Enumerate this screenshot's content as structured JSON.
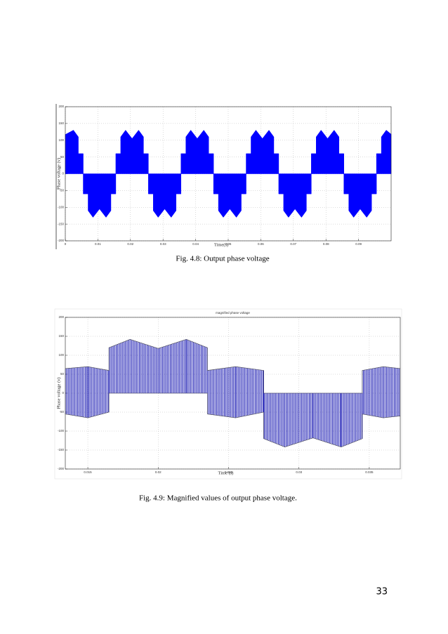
{
  "chart_data": [
    {
      "type": "area",
      "ylabel": "Phase voltage (v)",
      "xlabel": "Time(s)",
      "color": "#0000ff",
      "grid": true,
      "xlim": [
        0,
        0.1
      ],
      "ylim": [
        -200,
        200
      ],
      "xticks": [
        0,
        0.01,
        0.02,
        0.03,
        0.04,
        0.05,
        0.06,
        0.07,
        0.08,
        0.09
      ],
      "yticks": [
        200,
        150,
        100,
        50,
        0,
        -50,
        -100,
        -150,
        -200
      ],
      "x": [
        0,
        0.0025,
        0.004,
        0.004,
        0.0055,
        0.0055,
        0.007,
        0.007,
        0.0085,
        0.0105,
        0.0125,
        0.014,
        0.014,
        0.0155,
        0.0155,
        0.017,
        0.017,
        0.0185,
        0.0205,
        0.0225,
        0.024,
        0.024,
        0.0255,
        0.0255,
        0.027,
        0.027,
        0.0285,
        0.0305,
        0.0325,
        0.034,
        0.034,
        0.0355,
        0.0355,
        0.037,
        0.037,
        0.0385,
        0.0405,
        0.0425,
        0.044,
        0.044,
        0.0455,
        0.0455,
        0.047,
        0.047,
        0.0485,
        0.0505,
        0.0525,
        0.054,
        0.054,
        0.0555,
        0.0555,
        0.057,
        0.057,
        0.0585,
        0.0605,
        0.0625,
        0.064,
        0.064,
        0.0655,
        0.0655,
        0.067,
        0.067,
        0.0685,
        0.0705,
        0.0725,
        0.074,
        0.074,
        0.0755,
        0.0755,
        0.077,
        0.077,
        0.0785,
        0.0805,
        0.0825,
        0.084,
        0.084,
        0.0855,
        0.0855,
        0.087,
        0.087,
        0.0885,
        0.0905,
        0.0925,
        0.094,
        0.094,
        0.0955,
        0.0955,
        0.097,
        0.097,
        0.0985,
        0.1
      ],
      "values": [
        117,
        130,
        110,
        60,
        60,
        -60,
        -60,
        -110,
        -130,
        -105,
        -130,
        -110,
        -60,
        -60,
        60,
        60,
        110,
        130,
        105,
        130,
        110,
        60,
        60,
        -60,
        -60,
        -110,
        -130,
        -105,
        -130,
        -110,
        -60,
        -60,
        60,
        60,
        110,
        130,
        105,
        130,
        110,
        60,
        60,
        -60,
        -60,
        -110,
        -130,
        -105,
        -130,
        -110,
        -60,
        -60,
        60,
        60,
        110,
        130,
        105,
        130,
        110,
        60,
        60,
        -60,
        -60,
        -110,
        -130,
        -105,
        -130,
        -110,
        -60,
        -60,
        60,
        60,
        110,
        130,
        105,
        130,
        110,
        60,
        60,
        -60,
        -60,
        -110,
        -130,
        -105,
        -130,
        -110,
        -60,
        -60,
        60,
        60,
        110,
        130,
        118
      ]
    },
    {
      "type": "band",
      "title": "magnified phase voltage",
      "ylabel": "Phase voltage (v)",
      "xlabel": "Time (s)",
      "color": "#1c1cb4",
      "grid": true,
      "xlim": [
        0.0134,
        0.0372
      ],
      "ylim": [
        -200,
        200
      ],
      "xticks": [
        0.015,
        0.02,
        0.025,
        0.03,
        0.035
      ],
      "yticks": [
        200,
        150,
        100,
        50,
        0,
        -50,
        -100,
        -150,
        -200
      ],
      "x": [
        0.0134,
        0.015,
        0.0165,
        0.0165,
        0.018,
        0.02,
        0.022,
        0.0235,
        0.0235,
        0.0255,
        0.0275,
        0.0275,
        0.029,
        0.031,
        0.033,
        0.0345,
        0.0345,
        0.036,
        0.0372
      ],
      "upper": [
        65,
        70,
        60,
        120,
        142,
        118,
        142,
        120,
        60,
        70,
        60,
        0,
        0,
        0,
        0,
        0,
        60,
        70,
        65
      ],
      "lower": [
        -55,
        -65,
        -50,
        0,
        0,
        0,
        0,
        0,
        -55,
        -65,
        -50,
        -120,
        -142,
        -118,
        -142,
        -120,
        -55,
        -65,
        -60
      ]
    }
  ],
  "captions": [
    "Fig. 4.8: Output phase voltage",
    "Fig. 4.9: Magnified values of output phase voltage."
  ],
  "page_number": "33"
}
